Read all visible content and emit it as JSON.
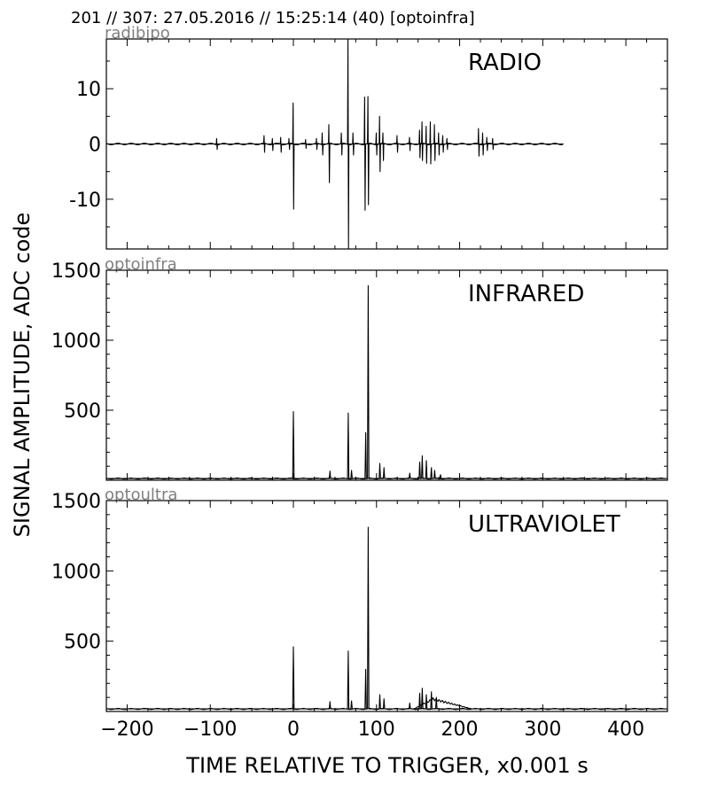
{
  "header": "201 // 307:   27.05.2016 // 15:25:14 (40)  [optoinfra]",
  "ylabel": "SIGNAL AMPLITUDE,  ADC code",
  "xlabel": "TIME RELATIVE TO TRIGGER,   x0.001 s",
  "chart_data": [
    {
      "type": "line",
      "title": "RADIO",
      "tag": "radibipo",
      "xlim": [
        -225,
        450
      ],
      "ylim": [
        -19,
        19
      ],
      "yticks": [
        -10,
        0,
        10
      ],
      "yticklabels": [
        "-10",
        "0",
        "10"
      ],
      "minor_yticks": [
        -15,
        -5,
        5,
        15
      ],
      "trace": {
        "x_start": -225,
        "x_end": 325,
        "baseline": 0
      },
      "spikes": [
        {
          "x": -92,
          "y": [
            -1,
            1
          ]
        },
        {
          "x": -35,
          "y": [
            -1.5,
            1.5
          ]
        },
        {
          "x": -25,
          "y": [
            -1.2,
            1
          ]
        },
        {
          "x": -15,
          "y": [
            -1.5,
            1.2
          ]
        },
        {
          "x": -5,
          "y": [
            -1,
            1
          ]
        },
        {
          "x": 0,
          "y": [
            -11.8,
            7.4
          ]
        },
        {
          "x": 15,
          "y": [
            -0.8,
            0.8
          ]
        },
        {
          "x": 28,
          "y": [
            -1,
            1
          ]
        },
        {
          "x": 35,
          "y": [
            -2,
            2
          ]
        },
        {
          "x": 43,
          "y": [
            -7,
            3.5
          ]
        },
        {
          "x": 58,
          "y": [
            -2,
            2
          ]
        },
        {
          "x": 66,
          "y": [
            -19,
            19
          ]
        },
        {
          "x": 72,
          "y": [
            -2,
            2
          ]
        },
        {
          "x": 86,
          "y": [
            -12,
            8.5
          ]
        },
        {
          "x": 90,
          "y": [
            -11,
            8.6
          ]
        },
        {
          "x": 100,
          "y": [
            -2,
            2
          ]
        },
        {
          "x": 104,
          "y": [
            -5,
            5
          ]
        },
        {
          "x": 108,
          "y": [
            -3,
            2
          ]
        },
        {
          "x": 125,
          "y": [
            -1.5,
            1.5
          ]
        },
        {
          "x": 140,
          "y": [
            -1.2,
            1.2
          ]
        },
        {
          "x": 152,
          "y": [
            -2.5,
            2.5
          ]
        },
        {
          "x": 155,
          "y": [
            -3,
            4
          ]
        },
        {
          "x": 160,
          "y": [
            -3.5,
            3.2
          ]
        },
        {
          "x": 165,
          "y": [
            -3.6,
            4
          ]
        },
        {
          "x": 170,
          "y": [
            -3,
            3.5
          ]
        },
        {
          "x": 175,
          "y": [
            -2,
            2
          ]
        },
        {
          "x": 180,
          "y": [
            -1.5,
            1.5
          ]
        },
        {
          "x": 185,
          "y": [
            -1,
            1
          ]
        },
        {
          "x": 223,
          "y": [
            -2.2,
            2.8
          ]
        },
        {
          "x": 228,
          "y": [
            -2,
            2
          ]
        },
        {
          "x": 233,
          "y": [
            -1.2,
            1.2
          ]
        },
        {
          "x": 240,
          "y": [
            -1,
            1
          ]
        }
      ]
    },
    {
      "type": "line",
      "title": "INFRARED",
      "tag": "optoinfra",
      "xlim": [
        -225,
        450
      ],
      "ylim": [
        0,
        1500
      ],
      "yticks": [
        500,
        1000,
        1500
      ],
      "yticklabels": [
        "500",
        "1000",
        "1500"
      ],
      "minor_yticks": [
        100,
        200,
        300,
        400,
        600,
        700,
        800,
        900,
        1100,
        1200,
        1300,
        1400
      ],
      "trace": {
        "x_start": -225,
        "x_end": 450,
        "baseline": 12
      },
      "spikes": [
        {
          "x": 0,
          "y": 490
        },
        {
          "x": 44,
          "y": 65
        },
        {
          "x": 66,
          "y": 480
        },
        {
          "x": 70,
          "y": 70
        },
        {
          "x": 87,
          "y": 340
        },
        {
          "x": 90,
          "y": 1390
        },
        {
          "x": 104,
          "y": 120
        },
        {
          "x": 109,
          "y": 90
        },
        {
          "x": 140,
          "y": 50
        },
        {
          "x": 152,
          "y": 130
        },
        {
          "x": 155,
          "y": 175
        },
        {
          "x": 160,
          "y": 140
        },
        {
          "x": 166,
          "y": 90
        },
        {
          "x": 170,
          "y": 70
        },
        {
          "x": 177,
          "y": 40
        }
      ]
    },
    {
      "type": "line",
      "title": "ULTRAVIOLET",
      "tag": "optoultra",
      "xlim": [
        -225,
        450
      ],
      "ylim": [
        0,
        1500
      ],
      "yticks": [
        500,
        1000,
        1500
      ],
      "yticklabels": [
        "500",
        "1000",
        "1500"
      ],
      "minor_yticks": [
        100,
        200,
        300,
        400,
        600,
        700,
        800,
        900,
        1100,
        1200,
        1300,
        1400
      ],
      "trace": {
        "x_start": -225,
        "x_end": 450,
        "baseline": 18
      },
      "spikes": [
        {
          "x": 0,
          "y": 460
        },
        {
          "x": 44,
          "y": 70
        },
        {
          "x": 66,
          "y": 430
        },
        {
          "x": 70,
          "y": 75
        },
        {
          "x": 87,
          "y": 300
        },
        {
          "x": 90,
          "y": 1310
        },
        {
          "x": 104,
          "y": 120
        },
        {
          "x": 109,
          "y": 90
        },
        {
          "x": 140,
          "y": 60
        },
        {
          "x": 152,
          "y": 130
        },
        {
          "x": 155,
          "y": 165
        },
        {
          "x": 160,
          "y": 120
        },
        {
          "x": 166,
          "y": 140
        },
        {
          "x": 172,
          "y": 100
        }
      ],
      "hump": {
        "x_start": 145,
        "x_peak": 168,
        "x_end": 215,
        "y_peak": 80
      }
    }
  ],
  "xticks": [
    -200,
    -100,
    0,
    100,
    200,
    300,
    400
  ],
  "xticklabels": [
    "−200",
    "−100",
    "0",
    "100",
    "200",
    "300",
    "400"
  ],
  "minor_xticks": [
    -225,
    -175,
    -150,
    -125,
    -75,
    -50,
    -25,
    25,
    50,
    75,
    125,
    150,
    175,
    225,
    250,
    275,
    325,
    350,
    375,
    425,
    450
  ]
}
